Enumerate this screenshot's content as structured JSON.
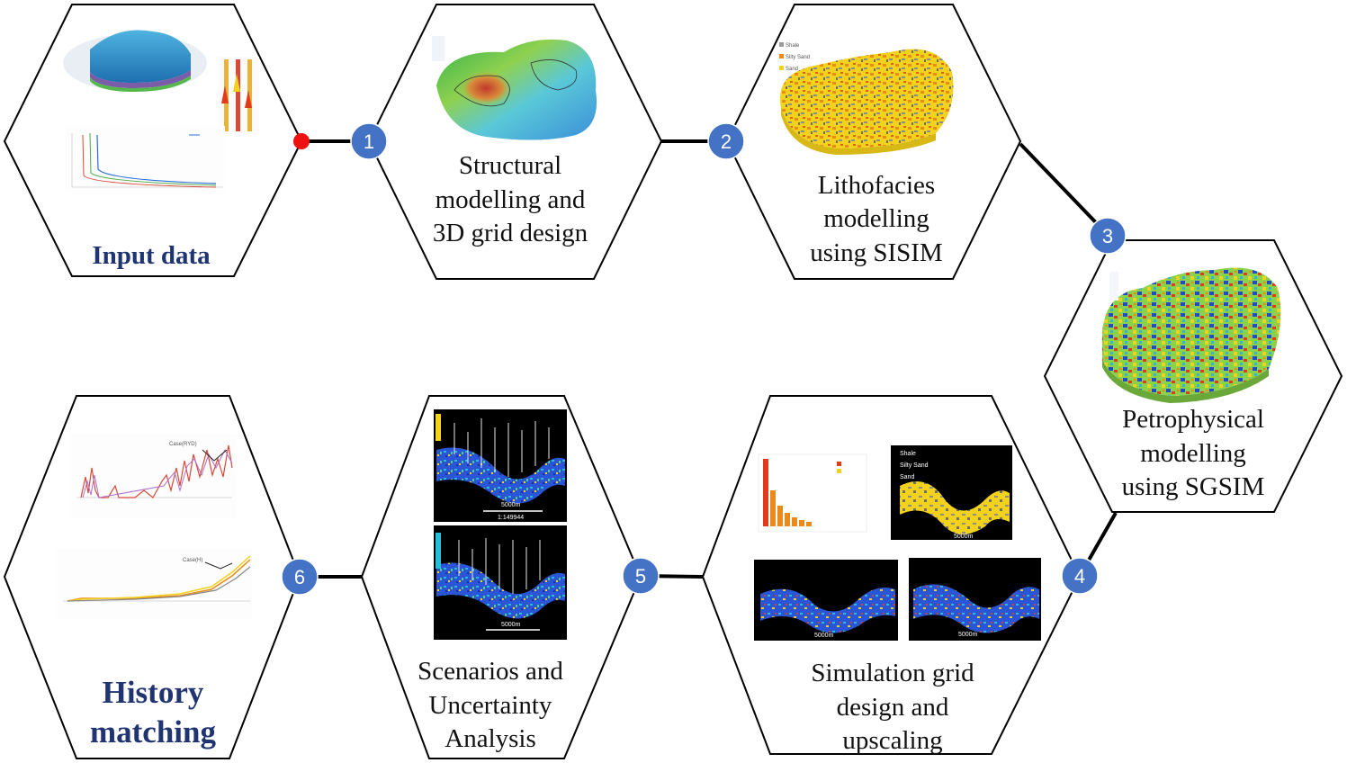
{
  "steps": [
    {
      "id": "input",
      "label_lines": [
        "Input data"
      ]
    },
    {
      "id": "structural",
      "number": "1",
      "label_lines": [
        "Structural",
        "modelling and",
        "3D grid design"
      ]
    },
    {
      "id": "lithofacies",
      "number": "2",
      "label_lines": [
        "Lithofacies",
        "modelling",
        "using SISIM"
      ]
    },
    {
      "id": "petrophysical",
      "number": "3",
      "label_lines": [
        "Petrophysical",
        "modelling",
        "using SGSIM"
      ]
    },
    {
      "id": "simulation",
      "number": "4",
      "label_lines": [
        "Simulation grid",
        "design and",
        "upscaling"
      ]
    },
    {
      "id": "scenarios",
      "number": "5",
      "label_lines": [
        "Scenarios and",
        "Uncertainty",
        "Analysis"
      ]
    },
    {
      "id": "history",
      "number": "6",
      "label_lines": [
        "History",
        "matching"
      ]
    }
  ],
  "thumbnails": {
    "lithofacies_legend": [
      "Shale",
      "Silty Sand",
      "Sand"
    ],
    "simulation_legend": [
      "Shale",
      "Silty Sand",
      "Sand"
    ],
    "scale_bar_top": "5000m",
    "scale_ratio_top": "1:149944",
    "scale_bar_bottom": "5000m",
    "scale_bar_sim_a": "5000m",
    "scale_bar_sim_b": "5000m",
    "scale_bar_sim_c": "5000m",
    "history_top_annotation": "Case(RYD)",
    "history_bottom_annotation": "Case(H)"
  },
  "colors": {
    "badge": "#4472c4",
    "title_blue": "#1f3471",
    "start_dot": "#ee1111"
  }
}
